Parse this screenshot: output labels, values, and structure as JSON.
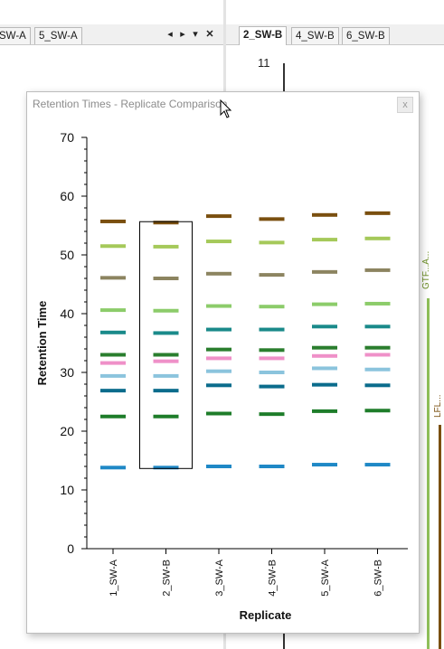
{
  "left_tabs": [
    {
      "label": "SW-A",
      "active": false
    },
    {
      "label": "5_SW-A",
      "active": false
    }
  ],
  "right_tabs": [
    {
      "label": "2_SW-B",
      "active": true
    },
    {
      "label": "4_SW-B",
      "active": false
    },
    {
      "label": "6_SW-B",
      "active": false
    }
  ],
  "tab_controls": [
    "chevron-left-icon",
    "chevron-right-icon",
    "dropdown-icon",
    "close-icon"
  ],
  "background_plot": {
    "axis_label_top": "11",
    "right_edge_labels": [
      "GTF...A...",
      "LFL..."
    ]
  },
  "window": {
    "title": "Retention Times - Replicate Comparison",
    "close_symbol": "x"
  },
  "chart_data": {
    "type": "scatter",
    "title": "",
    "xlabel": "Replicate",
    "ylabel": "Retention Time",
    "ylim": [
      0,
      70
    ],
    "yticks": [
      0,
      10,
      20,
      30,
      40,
      50,
      60,
      70
    ],
    "categories": [
      "1_SW-A",
      "2_SW-B",
      "3_SW-A",
      "4_SW-B",
      "5_SW-A",
      "6_SW-B"
    ],
    "selected_category": "2_SW-B",
    "series": [
      {
        "color": "#1f88c6",
        "values": [
          13.8,
          13.8,
          14.0,
          14.0,
          14.3,
          14.3
        ]
      },
      {
        "color": "#1e7d2a",
        "values": [
          22.5,
          22.5,
          23.0,
          22.9,
          23.4,
          23.5
        ]
      },
      {
        "color": "#0b6c8c",
        "values": [
          26.9,
          26.9,
          27.8,
          27.6,
          27.9,
          27.8
        ]
      },
      {
        "color": "#8bc4dd",
        "values": [
          29.4,
          29.4,
          30.2,
          30.0,
          30.7,
          30.5
        ]
      },
      {
        "color": "#ef90c8",
        "values": [
          31.6,
          31.9,
          32.4,
          32.4,
          32.8,
          33.0
        ]
      },
      {
        "color": "#2a7e2e",
        "values": [
          33.0,
          33.0,
          33.9,
          33.8,
          34.2,
          34.2
        ]
      },
      {
        "color": "#1a8a8a",
        "values": [
          36.8,
          36.7,
          37.3,
          37.3,
          37.8,
          37.8
        ]
      },
      {
        "color": "#8ccc6a",
        "values": [
          40.6,
          40.5,
          41.3,
          41.2,
          41.6,
          41.7
        ]
      },
      {
        "color": "#8c8460",
        "values": [
          46.1,
          46.0,
          46.8,
          46.6,
          47.1,
          47.4
        ]
      },
      {
        "color": "#a5c95a",
        "values": [
          51.5,
          51.4,
          52.3,
          52.1,
          52.6,
          52.8
        ]
      },
      {
        "color": "#7a4f0f",
        "values": [
          55.7,
          55.5,
          56.6,
          56.1,
          56.8,
          57.1
        ]
      }
    ],
    "colors": {
      "selection_box": "#000000",
      "axis": "#000000"
    }
  }
}
